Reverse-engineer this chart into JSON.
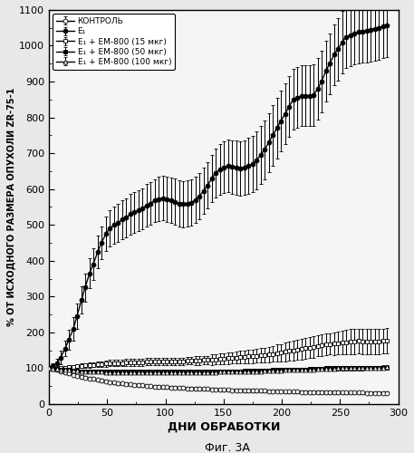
{
  "title": "",
  "xlabel": "ДНИ ОБРАБОТКИ",
  "ylabel": "% ОТ ИСХОДНОГО РАЗМЕРА ОПУХОЛИ ZR-75-1",
  "caption": "Фиг. 3А",
  "xlim": [
    0,
    300
  ],
  "ylim": [
    0,
    1100
  ],
  "yticks": [
    0,
    100,
    200,
    300,
    400,
    500,
    600,
    700,
    800,
    900,
    1000,
    1100
  ],
  "xticks": [
    0,
    50,
    100,
    150,
    200,
    250,
    300
  ],
  "legend_labels": [
    "КОНТРОЛЬ",
    "E₁",
    "E₁ + EM-800 (15 мкг)",
    "E₁ + EM-800 (50 мкг)",
    "E₁ + EM-800 (100 мкг)"
  ],
  "control_x": [
    0,
    3,
    7,
    10,
    14,
    17,
    21,
    24,
    28,
    31,
    35,
    38,
    42,
    45,
    49,
    52,
    56,
    59,
    63,
    66,
    70,
    73,
    77,
    80,
    84,
    87,
    91,
    94,
    98,
    101,
    105,
    108,
    112,
    115,
    119,
    122,
    126,
    129,
    133,
    136,
    140,
    143,
    147,
    150,
    154,
    157,
    161,
    164,
    168,
    171,
    175,
    178,
    182,
    185,
    189,
    192,
    196,
    199,
    203,
    206,
    210,
    213,
    217,
    220,
    224,
    227,
    231,
    234,
    238,
    241,
    245,
    248,
    252,
    255,
    259,
    262,
    266,
    269,
    273,
    276,
    280,
    283,
    287,
    290
  ],
  "control_y": [
    100,
    98,
    95,
    92,
    88,
    85,
    82,
    79,
    76,
    74,
    72,
    70,
    68,
    66,
    64,
    62,
    60,
    58,
    57,
    56,
    55,
    54,
    53,
    52,
    51,
    50,
    49,
    48,
    47,
    47,
    46,
    46,
    45,
    45,
    44,
    44,
    43,
    43,
    42,
    42,
    41,
    41,
    40,
    40,
    40,
    39,
    39,
    39,
    38,
    38,
    38,
    37,
    37,
    37,
    36,
    36,
    36,
    36,
    35,
    35,
    35,
    35,
    34,
    34,
    34,
    34,
    33,
    33,
    33,
    33,
    33,
    33,
    32,
    32,
    32,
    32,
    32,
    32,
    31,
    31,
    31,
    31,
    31,
    31
  ],
  "control_err": [
    3,
    3,
    3,
    3,
    4,
    4,
    4,
    4,
    4,
    4,
    4,
    4,
    4,
    4,
    4,
    4,
    4,
    4,
    4,
    4,
    4,
    4,
    4,
    4,
    4,
    4,
    4,
    4,
    4,
    4,
    4,
    4,
    4,
    4,
    4,
    4,
    4,
    4,
    4,
    4,
    4,
    4,
    4,
    4,
    4,
    4,
    4,
    4,
    4,
    4,
    4,
    4,
    4,
    4,
    4,
    4,
    4,
    4,
    4,
    4,
    4,
    4,
    4,
    4,
    4,
    4,
    4,
    4,
    4,
    4,
    4,
    4,
    4,
    4,
    4,
    4,
    4,
    4,
    4,
    4,
    4,
    4,
    4,
    4
  ],
  "e1_x": [
    0,
    3,
    7,
    10,
    14,
    17,
    21,
    24,
    28,
    31,
    35,
    38,
    42,
    45,
    49,
    52,
    56,
    59,
    63,
    66,
    70,
    73,
    77,
    80,
    84,
    87,
    91,
    94,
    98,
    101,
    105,
    108,
    112,
    115,
    119,
    122,
    126,
    129,
    133,
    136,
    140,
    143,
    147,
    150,
    154,
    157,
    161,
    164,
    168,
    171,
    175,
    178,
    182,
    185,
    189,
    192,
    196,
    199,
    203,
    206,
    210,
    213,
    217,
    220,
    224,
    227,
    231,
    234,
    238,
    241,
    245,
    248,
    252,
    255,
    259,
    262,
    266,
    269,
    273,
    276,
    280,
    283,
    287,
    290
  ],
  "e1_y": [
    100,
    105,
    115,
    130,
    155,
    180,
    210,
    245,
    290,
    325,
    365,
    390,
    425,
    450,
    475,
    490,
    500,
    505,
    515,
    520,
    530,
    535,
    540,
    545,
    555,
    560,
    568,
    572,
    575,
    572,
    568,
    565,
    560,
    558,
    560,
    562,
    570,
    580,
    595,
    610,
    630,
    645,
    655,
    660,
    665,
    662,
    660,
    658,
    660,
    665,
    670,
    680,
    695,
    710,
    730,
    750,
    770,
    790,
    810,
    830,
    850,
    855,
    860,
    860,
    860,
    862,
    880,
    900,
    930,
    950,
    975,
    990,
    1010,
    1025,
    1030,
    1035,
    1038,
    1040,
    1042,
    1045,
    1048,
    1050,
    1055,
    1058
  ],
  "e1_err": [
    3,
    8,
    12,
    18,
    22,
    28,
    32,
    35,
    38,
    40,
    42,
    44,
    45,
    46,
    48,
    50,
    52,
    53,
    54,
    55,
    56,
    57,
    58,
    58,
    60,
    60,
    60,
    62,
    62,
    63,
    63,
    64,
    64,
    65,
    65,
    65,
    65,
    65,
    65,
    65,
    65,
    68,
    70,
    72,
    74,
    75,
    75,
    76,
    76,
    78,
    78,
    80,
    80,
    82,
    82,
    84,
    84,
    85,
    85,
    85,
    85,
    85,
    85,
    85,
    85,
    85,
    85,
    85,
    85,
    85,
    85,
    88,
    88,
    88,
    88,
    88,
    88,
    88,
    90,
    90,
    90,
    90,
    90,
    90
  ],
  "em15_x": [
    0,
    3,
    7,
    10,
    14,
    17,
    21,
    24,
    28,
    31,
    35,
    38,
    42,
    45,
    49,
    52,
    56,
    59,
    63,
    66,
    70,
    73,
    77,
    80,
    84,
    87,
    91,
    94,
    98,
    101,
    105,
    108,
    112,
    115,
    119,
    122,
    126,
    129,
    133,
    136,
    140,
    143,
    147,
    150,
    154,
    157,
    161,
    164,
    168,
    171,
    175,
    178,
    182,
    185,
    189,
    192,
    196,
    199,
    203,
    206,
    210,
    213,
    217,
    220,
    224,
    227,
    231,
    234,
    238,
    241,
    245,
    248,
    252,
    255,
    259,
    262,
    266,
    269,
    273,
    276,
    280,
    283,
    287,
    290
  ],
  "em15_y": [
    100,
    100,
    100,
    100,
    102,
    103,
    104,
    105,
    107,
    108,
    109,
    110,
    111,
    112,
    113,
    114,
    115,
    115,
    115,
    116,
    116,
    116,
    117,
    117,
    118,
    118,
    119,
    119,
    120,
    120,
    120,
    120,
    120,
    120,
    121,
    121,
    122,
    122,
    123,
    123,
    124,
    125,
    126,
    127,
    128,
    129,
    130,
    131,
    132,
    133,
    134,
    135,
    136,
    137,
    138,
    140,
    142,
    144,
    146,
    148,
    150,
    152,
    154,
    156,
    158,
    160,
    163,
    165,
    167,
    168,
    169,
    170,
    172,
    173,
    174,
    175,
    176,
    175,
    174,
    174,
    174,
    175,
    176,
    177
  ],
  "em15_err": [
    3,
    3,
    4,
    4,
    4,
    5,
    5,
    5,
    6,
    6,
    7,
    7,
    8,
    8,
    9,
    9,
    10,
    10,
    10,
    10,
    10,
    10,
    10,
    10,
    10,
    10,
    10,
    10,
    10,
    10,
    10,
    10,
    10,
    10,
    10,
    10,
    12,
    12,
    12,
    12,
    14,
    14,
    15,
    15,
    16,
    16,
    17,
    17,
    18,
    18,
    19,
    19,
    20,
    20,
    22,
    22,
    24,
    24,
    26,
    26,
    28,
    28,
    29,
    29,
    30,
    30,
    30,
    30,
    30,
    30,
    32,
    32,
    34,
    34,
    35,
    35,
    35,
    35,
    35,
    35,
    35,
    35,
    35,
    35
  ],
  "em50_x": [
    0,
    3,
    7,
    10,
    14,
    17,
    21,
    24,
    28,
    31,
    35,
    38,
    42,
    45,
    49,
    52,
    56,
    59,
    63,
    66,
    70,
    73,
    77,
    80,
    84,
    87,
    91,
    94,
    98,
    101,
    105,
    108,
    112,
    115,
    119,
    122,
    126,
    129,
    133,
    136,
    140,
    143,
    147,
    150,
    154,
    157,
    161,
    164,
    168,
    171,
    175,
    178,
    182,
    185,
    189,
    192,
    196,
    199,
    203,
    206,
    210,
    213,
    217,
    220,
    224,
    227,
    231,
    234,
    238,
    241,
    245,
    248,
    252,
    255,
    259,
    262,
    266,
    269,
    273,
    276,
    280,
    283,
    287,
    290
  ],
  "em50_y": [
    100,
    99,
    98,
    97,
    96,
    95,
    94,
    93,
    92,
    92,
    92,
    92,
    91,
    91,
    91,
    91,
    90,
    90,
    90,
    90,
    90,
    90,
    90,
    90,
    90,
    90,
    90,
    90,
    90,
    90,
    90,
    90,
    90,
    90,
    90,
    90,
    90,
    90,
    91,
    91,
    91,
    91,
    91,
    91,
    92,
    92,
    92,
    92,
    93,
    93,
    93,
    93,
    94,
    94,
    94,
    95,
    95,
    95,
    96,
    96,
    96,
    97,
    97,
    97,
    98,
    98,
    99,
    99,
    100,
    100,
    100,
    100,
    100,
    100,
    100,
    100,
    100,
    100,
    101,
    101,
    101,
    101,
    102,
    102
  ],
  "em50_err": [
    3,
    3,
    3,
    3,
    3,
    3,
    3,
    3,
    3,
    3,
    3,
    3,
    4,
    4,
    4,
    4,
    4,
    4,
    4,
    4,
    4,
    4,
    4,
    4,
    4,
    4,
    4,
    4,
    4,
    4,
    4,
    4,
    4,
    4,
    4,
    4,
    4,
    4,
    4,
    4,
    4,
    4,
    4,
    4,
    4,
    4,
    4,
    4,
    4,
    4,
    4,
    4,
    4,
    4,
    5,
    5,
    5,
    5,
    5,
    5,
    5,
    5,
    5,
    5,
    5,
    5,
    5,
    5,
    6,
    6,
    6,
    6,
    6,
    6,
    6,
    6,
    6,
    6,
    6,
    6,
    6,
    6,
    6,
    6
  ],
  "em100_x": [
    0,
    3,
    7,
    10,
    14,
    17,
    21,
    24,
    28,
    31,
    35,
    38,
    42,
    45,
    49,
    52,
    56,
    59,
    63,
    66,
    70,
    73,
    77,
    80,
    84,
    87,
    91,
    94,
    98,
    101,
    105,
    108,
    112,
    115,
    119,
    122,
    126,
    129,
    133,
    136,
    140,
    143,
    147,
    150,
    154,
    157,
    161,
    164,
    168,
    171,
    175,
    178,
    182,
    185,
    189,
    192,
    196,
    199,
    203,
    206,
    210,
    213,
    217,
    220,
    224,
    227,
    231,
    234,
    238,
    241,
    245,
    248,
    252,
    255,
    259,
    262,
    266,
    269,
    273,
    276,
    280,
    283,
    287,
    290
  ],
  "em100_y": [
    100,
    99,
    98,
    97,
    96,
    95,
    94,
    93,
    92,
    92,
    91,
    91,
    90,
    90,
    89,
    89,
    88,
    88,
    88,
    88,
    88,
    88,
    88,
    88,
    88,
    88,
    88,
    88,
    88,
    88,
    88,
    88,
    88,
    88,
    88,
    88,
    88,
    88,
    89,
    89,
    89,
    89,
    90,
    90,
    90,
    90,
    91,
    91,
    91,
    91,
    92,
    92,
    92,
    93,
    93,
    93,
    94,
    94,
    95,
    95,
    95,
    96,
    96,
    97,
    97,
    97,
    98,
    98,
    99,
    99,
    99,
    100,
    100,
    100,
    100,
    100,
    100,
    100,
    101,
    101,
    101,
    102,
    102,
    103
  ],
  "em100_err": [
    3,
    3,
    3,
    3,
    3,
    3,
    3,
    3,
    3,
    3,
    3,
    3,
    3,
    3,
    3,
    3,
    3,
    3,
    3,
    3,
    3,
    3,
    3,
    3,
    3,
    3,
    3,
    3,
    3,
    3,
    3,
    3,
    3,
    3,
    3,
    3,
    3,
    3,
    3,
    3,
    3,
    3,
    3,
    3,
    3,
    3,
    3,
    3,
    3,
    3,
    3,
    3,
    3,
    3,
    3,
    3,
    3,
    3,
    3,
    3,
    3,
    3,
    3,
    3,
    3,
    3,
    3,
    3,
    3,
    3,
    3,
    3,
    3,
    3,
    3,
    3,
    3,
    3,
    3,
    3,
    3,
    3,
    3,
    3
  ],
  "bg_color": "#f0f0f0",
  "line_color": "#000000"
}
